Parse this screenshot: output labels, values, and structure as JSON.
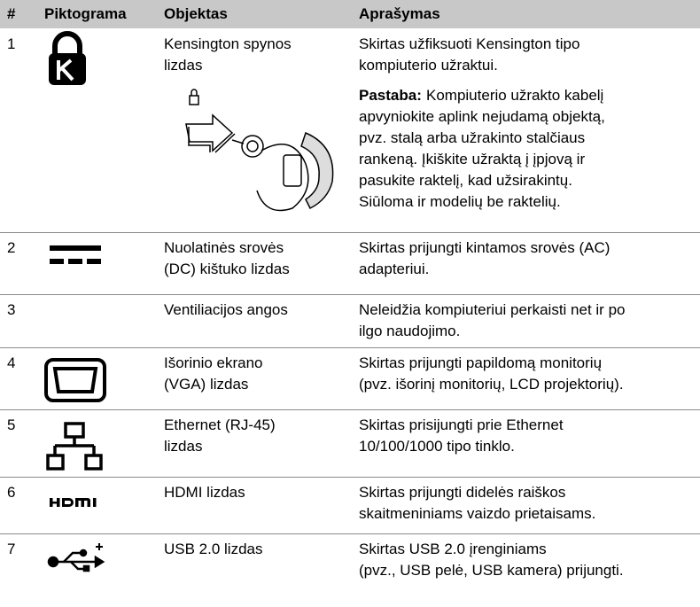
{
  "table": {
    "header": [
      "#",
      "Piktograma",
      "Objektas",
      "Aprašymas"
    ],
    "rows": [
      {
        "number": "1",
        "object": [
          "Kensington spynos",
          "lizdas"
        ],
        "description": [
          "Skirtas užfiksuoti Kensington tipo",
          "kompiuterio užraktui."
        ],
        "note": {
          "label": "Pastaba:",
          "lines": [
            "Kompiuterio užrakto kabelį",
            "apvyniokite aplink nejudamą objektą,",
            "pvz. stalą arba užrakinto stalčiaus",
            "rankeną. Įkiškite užraktą į įpjovą ir",
            "pasukite raktelį, kad užsirakintų.",
            "Siūloma ir modelių be raktelių."
          ]
        }
      },
      {
        "number": "2",
        "object": [
          "Nuolatinės srovės",
          "(DC) kištuko lizdas"
        ],
        "description": [
          "Skirtas prijungti kintamos srovės (AC)",
          "adapteriui."
        ]
      },
      {
        "number": "3",
        "object": [
          "Ventiliacijos angos"
        ],
        "description": [
          "Neleidžia kompiuteriui perkaisti net ir po",
          "ilgo naudojimo."
        ]
      },
      {
        "number": "4",
        "object": [
          "Išorinio ekrano",
          "(VGA) lizdas"
        ],
        "description": [
          "Skirtas prijungti papildomą monitorių",
          "(pvz. išorinį monitorių, LCD projektorių)."
        ]
      },
      {
        "number": "5",
        "object": [
          "Ethernet (RJ-45)",
          "lizdas"
        ],
        "description": [
          "Skirtas prisijungti prie Ethernet",
          "10/100/1000 tipo tinklo."
        ]
      },
      {
        "number": "6",
        "object": [
          "HDMI lizdas"
        ],
        "description": [
          "Skirtas prijungti didelės raiškos",
          "skaitmeniniams vaizdo prietaisams."
        ]
      },
      {
        "number": "7",
        "object": [
          "USB 2.0 lizdas"
        ],
        "description": [
          "Skirtas USB 2.0 įrenginiams",
          "(pvz., USB pelė, USB kamera) prijungti."
        ]
      }
    ]
  }
}
